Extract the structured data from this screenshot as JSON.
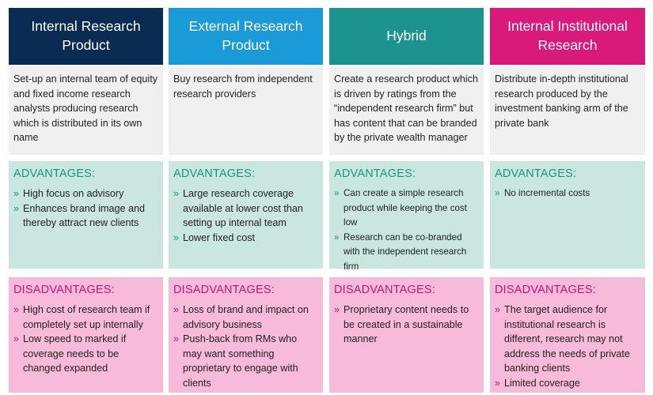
{
  "colors": {
    "header_internal": "#0b2c52",
    "header_external": "#1a9ad7",
    "header_hybrid": "#1d9390",
    "header_institutional": "#d91a7a",
    "advantages_bg": "#c9e6df",
    "disadvantages_bg": "#f7bad8",
    "description_bg": "#f0f0f0"
  },
  "bullet_glyph": "»",
  "columns": [
    {
      "title": "Internal Research Product",
      "description": "Set-up an internal team of equity and fixed income research analysts producing research which is distributed in its own name",
      "advantages_label": "ADVANTAGES:",
      "advantages": [
        "High focus on advisory",
        "Enhances brand image and thereby attract new clients"
      ],
      "disadvantages_label": "DISADVANTAGES:",
      "disadvantages": [
        "High cost of research team if completely set up internally",
        "Low speed to marked if coverage needs to be changed expanded"
      ]
    },
    {
      "title": "External Research Product",
      "description": "Buy research from independent research providers",
      "advantages_label": "ADVANTAGES:",
      "advantages": [
        "Large research coverage available at lower cost than setting up internal team",
        "Lower fixed cost"
      ],
      "disadvantages_label": "DISADVANTAGES:",
      "disadvantages": [
        "Loss of brand and impact on advisory business",
        "Push-back from RMs who may want something proprietary to engage with clients"
      ]
    },
    {
      "title": "Hybrid",
      "description": "Create a research product which is driven by ratings from the “independent research firm” but has content that can be branded by the private wealth manager",
      "advantages_label": "ADVANTAGES:",
      "advantages": [
        "Can create a simple research product while keeping the cost low",
        "Research can be co-branded with the independent research firm"
      ],
      "disadvantages_label": "DISADVANTAGES:",
      "disadvantages": [
        "Proprietary content needs to be created in a sustainable manner"
      ]
    },
    {
      "title": "Internal Institutional Research",
      "description": "Distribute in-depth institutional research produced by the investment banking arm of the private bank",
      "advantages_label": "ADVANTAGES:",
      "advantages": [
        "No incremental costs"
      ],
      "disadvantages_label": "DISADVANTAGES:",
      "disadvantages": [
        "The target audience for institutional research is different, research may not address the needs of private banking clients",
        "Limited coverage"
      ]
    }
  ]
}
